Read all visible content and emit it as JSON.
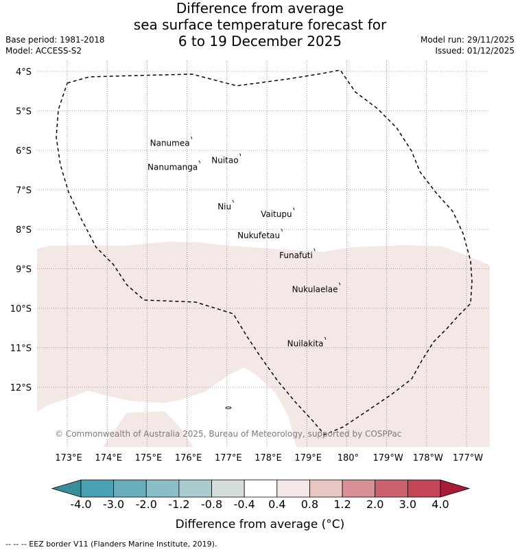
{
  "title": {
    "line1": "Difference from average",
    "line2": "sea surface temperature forecast for",
    "line3": "6 to 19 December 2025"
  },
  "meta": {
    "base_period": "Base period: 1981-2018",
    "model": "Model: ACCESS-S2",
    "model_run": "Model run: 29/11/2025",
    "issued": "Issued: 01/12/2025"
  },
  "map": {
    "lat_labels": [
      {
        "lat": -4,
        "label": "4°S"
      },
      {
        "lat": -5,
        "label": "5°S"
      },
      {
        "lat": -6,
        "label": "6°S"
      },
      {
        "lat": -7,
        "label": "7°S"
      },
      {
        "lat": -8,
        "label": "8°S"
      },
      {
        "lat": -9,
        "label": "9°S"
      },
      {
        "lat": -10,
        "label": "10°S"
      },
      {
        "lat": -11,
        "label": "11°S"
      },
      {
        "lat": -12,
        "label": "12°S"
      }
    ],
    "lon_labels": [
      {
        "lon": 173,
        "label": "173°E"
      },
      {
        "lon": 174,
        "label": "174°E"
      },
      {
        "lon": 175,
        "label": "175°E"
      },
      {
        "lon": 176,
        "label": "176°E"
      },
      {
        "lon": 177,
        "label": "177°E"
      },
      {
        "lon": 178,
        "label": "178°E"
      },
      {
        "lon": 179,
        "label": "179°E"
      },
      {
        "lon": 180,
        "label": "180°"
      },
      {
        "lon": 181,
        "label": "179°W"
      },
      {
        "lon": 182,
        "label": "178°W"
      },
      {
        "lon": 183,
        "label": "177°W"
      }
    ],
    "islands": [
      {
        "name": "Nanumea",
        "lon": 176.12,
        "lat": -5.68
      },
      {
        "name": "Nuitao",
        "lon": 177.34,
        "lat": -6.11
      },
      {
        "name": "Nanumanga",
        "lon": 176.32,
        "lat": -6.29
      },
      {
        "name": "Niu",
        "lon": 177.16,
        "lat": -7.29
      },
      {
        "name": "Vaitupu",
        "lon": 178.68,
        "lat": -7.48
      },
      {
        "name": "Nukufetau",
        "lon": 178.38,
        "lat": -8.02
      },
      {
        "name": "Funafuti",
        "lon": 179.2,
        "lat": -8.52
      },
      {
        "name": "Nukulaelae",
        "lon": 179.83,
        "lat": -9.38
      },
      {
        "name": "Nuilakita",
        "lon": 179.47,
        "lat": -10.76
      }
    ],
    "copyright": "© Commonwealth of Australia 2025, Bureau of Meteorology, supported by COSPPac",
    "anomaly_class": "0.4 to 0.8",
    "anomaly_color": "#f4e8e6"
  },
  "colorbar": {
    "label": "Difference from average (°C)",
    "ticks": [
      "-4.0",
      "-3.0",
      "-2.0",
      "-1.2",
      "-0.8",
      "-0.4",
      "0.4",
      "0.8",
      "1.2",
      "2.0",
      "3.0",
      "4.0"
    ],
    "colors": [
      "#4aa1b3",
      "#6aadba",
      "#8bbfc7",
      "#aaccd0",
      "#d4dcdc",
      "#ffffff",
      "#f4e8e6",
      "#e8c6c4",
      "#d99096",
      "#cb636e",
      "#c24655"
    ],
    "under_color": "#3a8d9a",
    "over_color": "#a81c3a"
  },
  "footer": {
    "eez_note": "-- -- -- EEZ border V11 (Flanders Marine Institute, 2019)."
  }
}
